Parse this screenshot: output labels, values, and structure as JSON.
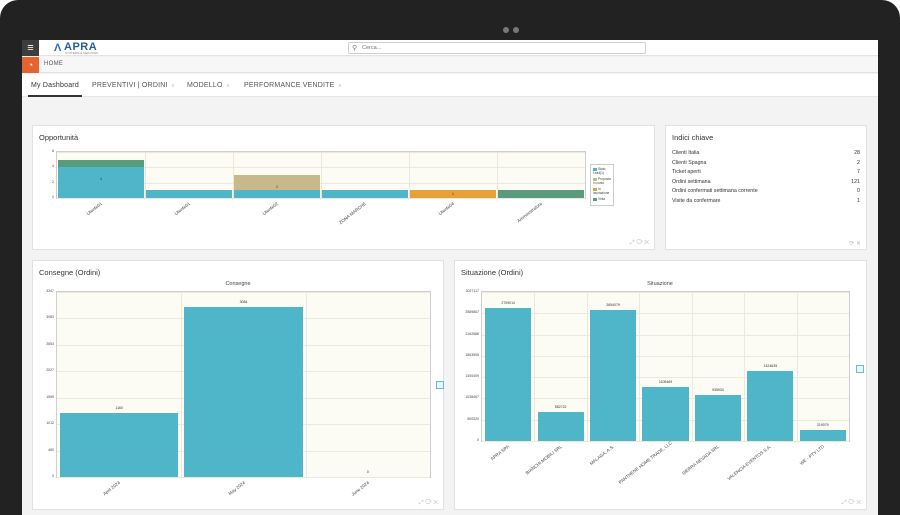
{
  "app": {
    "logo": "APRA",
    "logo_sub": "SYSTEMS & SERVICES",
    "search_placeholder": "Cerca..."
  },
  "breadcrumb": {
    "home": "HOME"
  },
  "tabs": [
    {
      "label": "My Dashboard"
    },
    {
      "label": "PREVENTIVI | ORDINI",
      "close": "x"
    },
    {
      "label": "MODELLO",
      "close": "x"
    },
    {
      "label": "PERFORMANCE VENDITE",
      "close": "x"
    }
  ],
  "opportunita": {
    "title": "Opportunità",
    "tools": "⤢ ⟳ ✕",
    "chart_data": {
      "type": "bar",
      "stacked": true,
      "categories": [
        "Utente01",
        "Utente01",
        "Utente02",
        "ZONA MARCHE",
        "Utente04",
        "Amministratore"
      ],
      "yticks": [
        "6",
        "4",
        "2",
        "0"
      ],
      "ylim": [
        0,
        6
      ],
      "series": [
        {
          "name": "Stato Lead(1)",
          "color": "#4fb6c9",
          "values": [
            4,
            1,
            1,
            1,
            0,
            0
          ]
        },
        {
          "name": "Proposta in corso",
          "color": "#c9b98a",
          "values": [
            0,
            0,
            2,
            0,
            0,
            0
          ]
        },
        {
          "name": "In lavorazione",
          "color": "#e8a13a",
          "values": [
            0,
            0,
            0,
            0,
            1,
            0
          ]
        },
        {
          "name": "Vinta",
          "color": "#5a9a7d",
          "values": [
            1,
            0,
            0,
            0,
            0,
            1
          ]
        }
      ],
      "data_labels": [
        "4",
        "",
        "2",
        "",
        "1",
        ""
      ],
      "legend_labels": [
        "Stato Lead(1)",
        "Proposta in corso",
        "In lavorazione",
        "Vinta"
      ]
    }
  },
  "indici": {
    "title": "Indici chiave",
    "tools": "⟳ ✕",
    "rows": [
      {
        "label": "Clienti Italia",
        "value": "28"
      },
      {
        "label": "Clienti Spagna",
        "value": "2"
      },
      {
        "label": "Ticket aperti",
        "value": "7"
      },
      {
        "label": "Ordini settimana",
        "value": "121"
      },
      {
        "label": "Ordini confermati settimana corrente",
        "value": "0"
      },
      {
        "label": "Visite da confermare",
        "value": "1"
      }
    ]
  },
  "consegne": {
    "title": "Consegne (Ordini)",
    "tools": "⤢ ⟳ ✕",
    "chart_data": {
      "type": "bar",
      "title": "Consegne",
      "categories": [
        "April 2024",
        "May 2024",
        "June 2024"
      ],
      "values": [
        1160,
        3084,
        0
      ],
      "data_labels": [
        "1160",
        "3084",
        "0"
      ],
      "color": "#4fb6c9",
      "ylim": [
        0,
        3347
      ],
      "yticks": [
        "3347",
        "3083",
        "2653",
        "2027",
        "1569",
        "1012",
        "480",
        "0"
      ]
    }
  },
  "situazione": {
    "title": "Situazione (Ordini)",
    "tools": "⤢ ⟳ ✕",
    "chart_data": {
      "type": "bar",
      "title": "Situazione",
      "categories": [
        "APRA SPA",
        "BIANCHI MOBILI SRL",
        "MALAGA, A.S.",
        "PANTHENE HOME TRADE, LLC",
        "SIERRA NEVADA SRL",
        "VALENCIA EVENTOS S.A.",
        "WE - PTY LTD"
      ],
      "values": [
        2709014,
        582722,
        2654079,
        1105469,
        935934,
        1424635,
        219079
      ],
      "data_labels": [
        "2709014",
        "582722",
        "2654079",
        "1105469",
        "935934",
        "1424635",
        "219079"
      ],
      "color": "#4fb6c9",
      "ylim": [
        0,
        3027117
      ],
      "yticks": [
        "3027117",
        "2589867",
        "2162586",
        "1863505",
        "1300409",
        "1038467",
        "500320",
        "0"
      ]
    }
  }
}
